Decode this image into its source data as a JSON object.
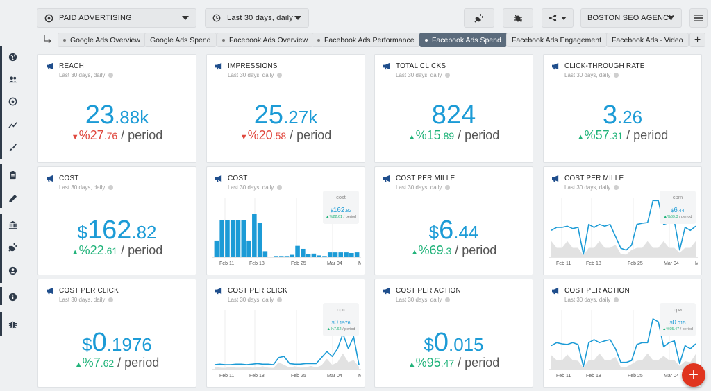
{
  "colors": {
    "accent": "#1c9bd6",
    "up": "#21b37a",
    "down": "#e0483e",
    "active_tab": "#5b6b7c",
    "fab": "#e0351f"
  },
  "topbar": {
    "category": "PAID ADVERTISING",
    "date_range": "Last 30 days, daily",
    "client": "BOSTON SEO AGENCY",
    "icons": [
      "plug-icon",
      "bug-off-icon",
      "share-icon",
      "hamburger-menu-icon"
    ]
  },
  "tabs": [
    "Google Ads Overview",
    "Google Ads Spend",
    "Facebook Ads Overview",
    "Facebook Ads Performance",
    "Facebook Ads Spend",
    "Facebook Ads Engagement",
    "Facebook Ads - Video"
  ],
  "active_tab": "Facebook Ads Spend",
  "sidebar": [
    "globe-icon",
    "users-icon",
    "target-icon",
    "trend-icon",
    "brush-icon",
    "clipboard-icon",
    "pen-icon",
    "bank-icon",
    "plug-icon",
    "user-circle-icon",
    "info-icon",
    "bug-icon"
  ],
  "period_label": "/ period",
  "subtitle": "Last 30 days, daily",
  "cards": [
    {
      "title": "REACH",
      "currency": "",
      "int": "23",
      "dec": ".88k",
      "dir": "down",
      "pct_int": "%27",
      "pct_dec": ".76"
    },
    {
      "title": "IMPRESSIONS",
      "currency": "",
      "int": "25",
      "dec": ".27k",
      "dir": "down",
      "pct_int": "%20",
      "pct_dec": ".58"
    },
    {
      "title": "TOTAL CLICKS",
      "currency": "",
      "int": "824",
      "dec": "",
      "dir": "up",
      "pct_int": "%15",
      "pct_dec": ".89"
    },
    {
      "title": "CLICK-THROUGH RATE",
      "currency": "",
      "int": "3",
      "dec": ".26",
      "dir": "up",
      "pct_int": "%57",
      "pct_dec": ".31"
    },
    {
      "title": "COST",
      "currency": "$",
      "int": "162",
      "dec": ".82",
      "dir": "up",
      "pct_int": "%22",
      "pct_dec": ".61"
    },
    {
      "title": "COST PER MILLE",
      "currency": "$",
      "int": "6",
      "dec": ".44",
      "dir": "up",
      "pct_int": "%69",
      "pct_dec": ".3"
    },
    {
      "title": "COST PER CLICK",
      "currency": "$",
      "int": "0",
      "dec": ".1976",
      "dir": "up",
      "pct_int": "%7",
      "pct_dec": ".62"
    },
    {
      "title": "COST PER ACTION",
      "currency": "$",
      "int": "0",
      "dec": ".015",
      "dir": "up",
      "pct_int": "%95",
      "pct_dec": ".47"
    }
  ],
  "charts": [
    {
      "title": "COST",
      "tip_name": "cost",
      "tip_cur": "$",
      "tip_int": "162",
      "tip_dec": ".82",
      "tip_chg": "%22.61",
      "tip_per": "/ period"
    },
    {
      "title": "COST PER MILLE",
      "tip_name": "cpm",
      "tip_cur": "$",
      "tip_int": "6",
      "tip_dec": ".44",
      "tip_chg": "%69.3",
      "tip_per": "/ period"
    },
    {
      "title": "COST PER CLICK",
      "tip_name": "cpc",
      "tip_cur": "$",
      "tip_int": "0",
      "tip_dec": ".1976",
      "tip_chg": "%7.62",
      "tip_per": "/ period"
    },
    {
      "title": "COST PER ACTION",
      "tip_name": "cpa",
      "tip_cur": "$",
      "tip_int": "0",
      "tip_dec": ".015",
      "tip_chg": "%95.47",
      "tip_per": "/ period"
    }
  ],
  "chart_data": [
    {
      "type": "bar",
      "name": "cost",
      "x_ticks": [
        "Feb 11",
        "Feb 18",
        "Feb 25",
        "Mar 04",
        "Mar"
      ],
      "values": [
        0.28,
        0.62,
        0.62,
        0.62,
        0.62,
        0.62,
        0.28,
        0.73,
        0.58,
        0.1,
        0.01,
        0.02,
        0.02,
        0.02,
        0.04,
        0.19,
        0.14,
        0.05,
        0.06,
        0.03,
        0.02,
        0.08,
        0.08,
        0.08,
        0.08,
        0.07,
        0.08
      ]
    },
    {
      "type": "line",
      "name": "cpm",
      "x_ticks": [
        "Feb 11",
        "Feb 18",
        "Feb 25",
        "Mar 04",
        "Mar"
      ],
      "values": [
        0.45,
        0.5,
        0.5,
        0.52,
        0.48,
        0.5,
        0.05,
        0.55,
        0.5,
        0.55,
        0.52,
        0.55,
        0.35,
        0.15,
        0.12,
        0.2,
        0.55,
        0.57,
        0.58,
        0.95,
        0.95,
        0.55,
        0.58,
        0.6,
        0.12,
        0.5,
        0.45,
        0.52
      ]
    },
    {
      "type": "line",
      "name": "cpc",
      "x_ticks": [
        "Feb 11",
        "Feb 18",
        "Feb 25",
        "Mar 04",
        "Mar"
      ],
      "values": [
        0.08,
        0.09,
        0.08,
        0.08,
        0.09,
        0.09,
        0.08,
        0.09,
        0.1,
        0.09,
        0.09,
        0.08,
        0.2,
        0.22,
        0.1,
        0.09,
        0.09,
        0.1,
        0.1,
        0.1,
        0.2,
        0.3,
        0.22,
        0.35,
        0.6,
        0.35,
        0.55,
        0.08
      ]
    },
    {
      "type": "line",
      "name": "cpa",
      "x_ticks": [
        "Feb 11",
        "Feb 18",
        "Feb 25",
        "Mar 04",
        "Mar"
      ],
      "values": [
        0.4,
        0.45,
        0.43,
        0.42,
        0.45,
        0.42,
        0.05,
        0.45,
        0.5,
        0.45,
        0.48,
        0.5,
        0.35,
        0.12,
        0.12,
        0.15,
        0.42,
        0.45,
        0.45,
        0.85,
        0.8,
        0.38,
        0.45,
        0.48,
        0.1,
        0.4,
        0.35,
        0.43
      ]
    }
  ]
}
